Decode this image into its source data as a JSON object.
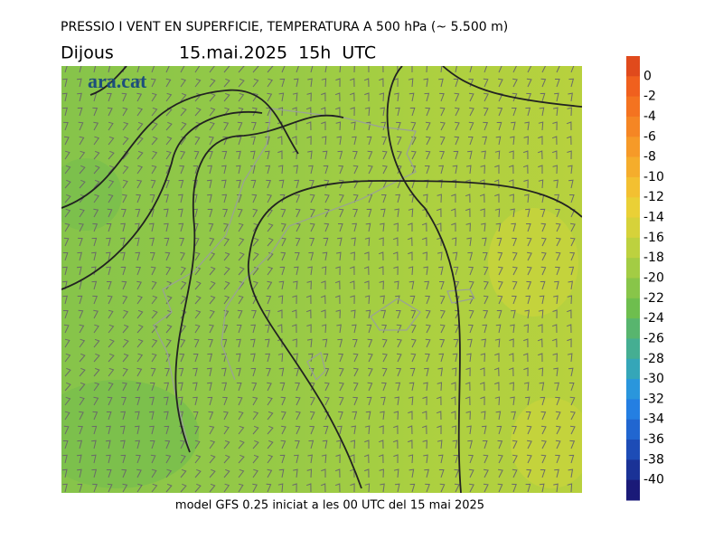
{
  "header": {
    "title": "PRESSIO I VENT EN SUPERFICIE, TEMPERATURA A 500 hPa (~ 5.500 m)",
    "day": "Dijous",
    "date": "15.mai.2025  15h  UTC"
  },
  "logo": "ara.cat",
  "footer": "model GFS 0.25 iniciat a les 00 UTC del 15 mai 2025",
  "colorbar": {
    "ticks": [
      0,
      -2,
      -4,
      -6,
      -8,
      -10,
      -12,
      -14,
      -16,
      -18,
      -20,
      -22,
      -24,
      -26,
      -28,
      -30,
      -32,
      -34,
      -36,
      -38,
      -40
    ],
    "colors": [
      "#e04a1c",
      "#f0601e",
      "#f47320",
      "#f58624",
      "#f69a28",
      "#f5ad2c",
      "#f3c031",
      "#ead036",
      "#d6d23a",
      "#bdd13f",
      "#a3cc44",
      "#88c549",
      "#6ebe4e",
      "#58b56e",
      "#45ae92",
      "#35a6b8",
      "#2a96dc",
      "#247fe2",
      "#2166d0",
      "#1d4cb6",
      "#1a3296",
      "#1a1a78"
    ]
  }
}
